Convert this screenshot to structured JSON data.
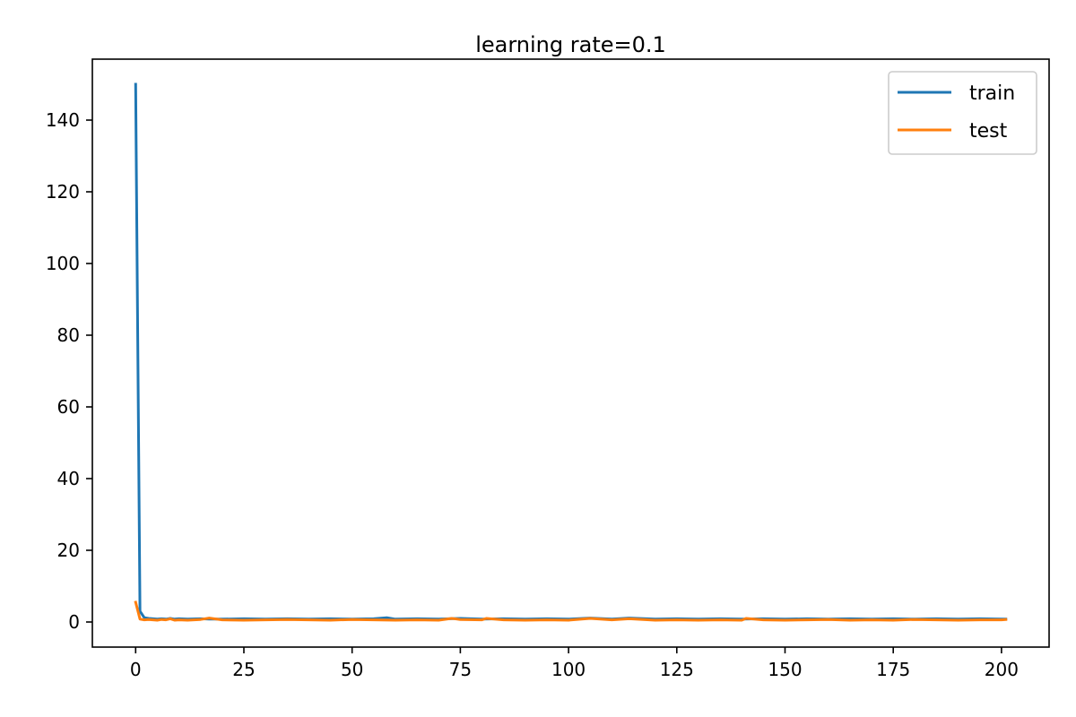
{
  "chart_data": {
    "type": "line",
    "title": "learning rate=0.1",
    "xlabel": "",
    "ylabel": "",
    "xlim": [
      -10,
      211
    ],
    "ylim": [
      -7,
      157
    ],
    "xticks": [
      0,
      25,
      50,
      75,
      100,
      125,
      150,
      175,
      200
    ],
    "yticks": [
      0,
      20,
      40,
      60,
      80,
      100,
      120,
      140
    ],
    "grid": false,
    "legend_position": "upper right",
    "series": [
      {
        "name": "train",
        "color": "#1f77b4",
        "x": [
          0,
          1,
          2,
          3,
          4,
          5,
          6,
          7,
          8,
          9,
          10,
          12,
          15,
          17,
          20,
          25,
          30,
          35,
          40,
          45,
          50,
          55,
          58,
          60,
          65,
          70,
          75,
          80,
          85,
          90,
          95,
          100,
          105,
          110,
          114,
          120,
          125,
          130,
          135,
          140,
          145,
          150,
          155,
          160,
          165,
          170,
          175,
          180,
          185,
          190,
          195,
          200,
          201
        ],
        "y": [
          150,
          3,
          1.2,
          1.0,
          0.9,
          0.8,
          0.9,
          0.8,
          1.0,
          0.8,
          0.9,
          0.8,
          0.9,
          0.8,
          0.8,
          0.9,
          0.8,
          0.9,
          0.8,
          0.9,
          0.8,
          0.9,
          1.2,
          0.8,
          0.9,
          0.8,
          1.0,
          0.8,
          0.9,
          0.8,
          0.9,
          0.8,
          1.1,
          0.8,
          1.1,
          0.8,
          0.9,
          0.8,
          0.9,
          0.8,
          0.9,
          0.8,
          0.9,
          0.8,
          0.9,
          0.8,
          0.9,
          0.8,
          0.9,
          0.8,
          0.9,
          0.8,
          0.8
        ]
      },
      {
        "name": "test",
        "color": "#ff7f0e",
        "x": [
          0,
          1,
          2,
          3,
          4,
          5,
          6,
          7,
          8,
          9,
          10,
          12,
          15,
          17,
          20,
          25,
          30,
          35,
          40,
          45,
          50,
          55,
          60,
          65,
          70,
          73,
          75,
          80,
          81,
          85,
          90,
          95,
          100,
          105,
          110,
          114,
          120,
          125,
          130,
          135,
          140,
          141,
          145,
          150,
          155,
          160,
          165,
          170,
          175,
          180,
          185,
          190,
          195,
          200,
          201
        ],
        "y": [
          5.5,
          0.8,
          0.6,
          0.7,
          0.6,
          0.5,
          0.7,
          0.6,
          0.9,
          0.5,
          0.6,
          0.5,
          0.7,
          1.1,
          0.6,
          0.5,
          0.6,
          0.7,
          0.6,
          0.5,
          0.7,
          0.6,
          0.5,
          0.6,
          0.5,
          1.0,
          0.7,
          0.6,
          1.0,
          0.6,
          0.5,
          0.6,
          0.5,
          1.0,
          0.6,
          0.9,
          0.5,
          0.6,
          0.5,
          0.6,
          0.5,
          1.0,
          0.6,
          0.5,
          0.6,
          0.7,
          0.5,
          0.6,
          0.5,
          0.7,
          0.6,
          0.5,
          0.6,
          0.6,
          0.7
        ]
      }
    ]
  }
}
